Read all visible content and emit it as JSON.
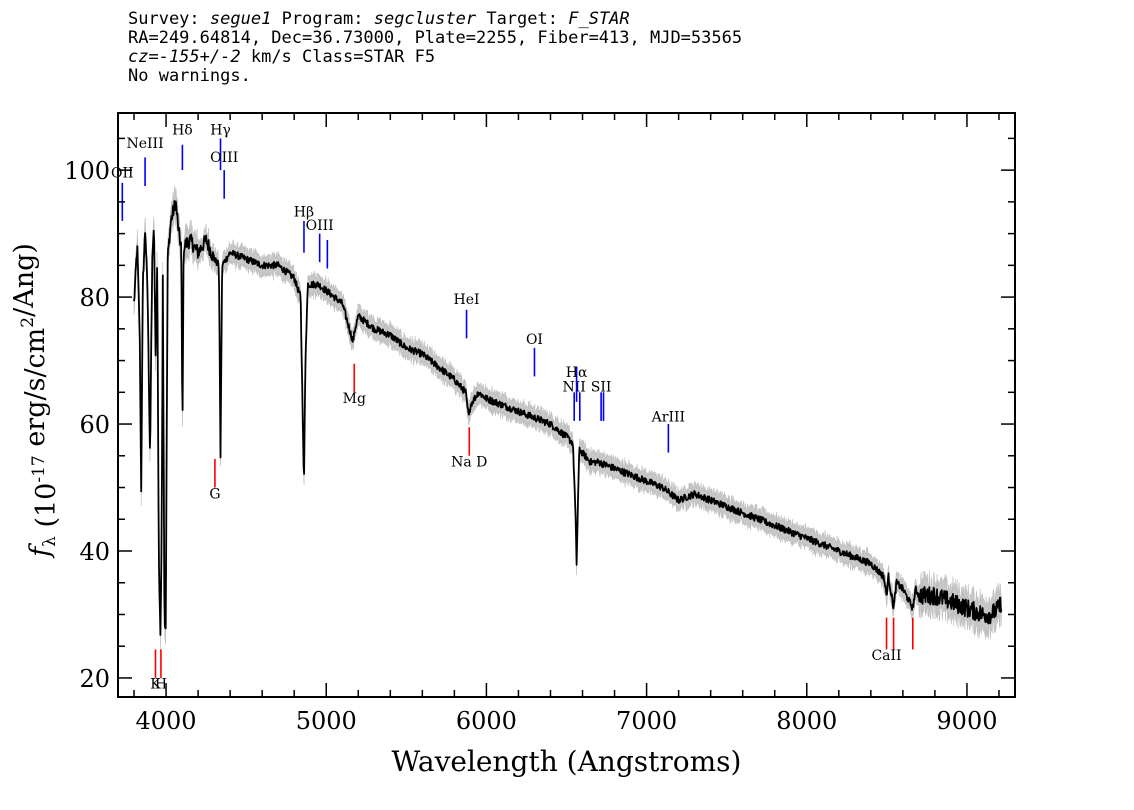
{
  "header": {
    "survey_label": "Survey:",
    "survey": "segue1",
    "program_label": "Program:",
    "program": "segcluster",
    "target_label": "Target:",
    "target": "F_STAR",
    "line2": "RA=249.64814, Dec=36.73000, Plate=2255, Fiber=413, MJD=53565",
    "cz": "cz=-155+/-2",
    "cz_suffix": "km/s Class=STAR F5",
    "line4": "No warnings."
  },
  "chart_data": {
    "type": "line",
    "xlabel": "Wavelength (Angstroms)",
    "ylabel": "f_λ (10^-17 erg/s/cm^2/Ang)",
    "xlim": [
      3700,
      9300
    ],
    "ylim": [
      17,
      109
    ],
    "x_ticks": [
      4000,
      5000,
      6000,
      7000,
      8000,
      9000
    ],
    "y_ticks": [
      20,
      40,
      60,
      80,
      100
    ],
    "series": [
      {
        "color": "#000000",
        "points": [
          [
            3800,
            79
          ],
          [
            3820,
            88
          ],
          [
            3835,
            75
          ],
          [
            3845,
            50
          ],
          [
            3855,
            82
          ],
          [
            3870,
            91
          ],
          [
            3885,
            80
          ],
          [
            3900,
            55
          ],
          [
            3915,
            88
          ],
          [
            3925,
            90
          ],
          [
            3935,
            70
          ],
          [
            3945,
            86
          ],
          [
            3955,
            38
          ],
          [
            3965,
            27
          ],
          [
            3972,
            40
          ],
          [
            3980,
            84
          ],
          [
            3990,
            29
          ],
          [
            3998,
            28
          ],
          [
            4010,
            86
          ],
          [
            4030,
            92
          ],
          [
            4060,
            95
          ],
          [
            4080,
            90
          ],
          [
            4095,
            88
          ],
          [
            4102,
            58
          ],
          [
            4110,
            88
          ],
          [
            4150,
            89
          ],
          [
            4200,
            87
          ],
          [
            4250,
            89
          ],
          [
            4300,
            86
          ],
          [
            4330,
            85
          ],
          [
            4340,
            55
          ],
          [
            4350,
            85
          ],
          [
            4400,
            87
          ],
          [
            4500,
            86
          ],
          [
            4600,
            85
          ],
          [
            4700,
            85
          ],
          [
            4800,
            83
          ],
          [
            4840,
            80
          ],
          [
            4850,
            66
          ],
          [
            4861,
            50
          ],
          [
            4870,
            70
          ],
          [
            4885,
            82
          ],
          [
            4950,
            82
          ],
          [
            5000,
            81
          ],
          [
            5100,
            79
          ],
          [
            5167,
            73
          ],
          [
            5180,
            75
          ],
          [
            5200,
            77
          ],
          [
            5300,
            75
          ],
          [
            5400,
            74
          ],
          [
            5500,
            72
          ],
          [
            5600,
            71
          ],
          [
            5700,
            69
          ],
          [
            5800,
            67
          ],
          [
            5870,
            65
          ],
          [
            5890,
            61
          ],
          [
            5900,
            63
          ],
          [
            5950,
            65
          ],
          [
            6000,
            64
          ],
          [
            6100,
            63
          ],
          [
            6200,
            62
          ],
          [
            6300,
            61
          ],
          [
            6400,
            60
          ],
          [
            6500,
            58
          ],
          [
            6540,
            57
          ],
          [
            6556,
            46
          ],
          [
            6563,
            38
          ],
          [
            6570,
            46
          ],
          [
            6580,
            56
          ],
          [
            6650,
            54
          ],
          [
            6700,
            54
          ],
          [
            6800,
            53
          ],
          [
            6900,
            52
          ],
          [
            7000,
            51
          ],
          [
            7100,
            50
          ],
          [
            7200,
            48
          ],
          [
            7300,
            49
          ],
          [
            7400,
            48
          ],
          [
            7500,
            47
          ],
          [
            7600,
            46
          ],
          [
            7700,
            45
          ],
          [
            7800,
            44
          ],
          [
            7900,
            43
          ],
          [
            8000,
            42
          ],
          [
            8100,
            41
          ],
          [
            8200,
            40
          ],
          [
            8300,
            39
          ],
          [
            8400,
            38
          ],
          [
            8480,
            36
          ],
          [
            8498,
            33
          ],
          [
            8510,
            36
          ],
          [
            8542,
            31
          ],
          [
            8560,
            35
          ],
          [
            8600,
            34
          ],
          [
            8662,
            31
          ],
          [
            8680,
            34
          ],
          [
            8700,
            33
          ],
          [
            8800,
            33
          ],
          [
            8900,
            32
          ],
          [
            9000,
            31
          ],
          [
            9100,
            30
          ],
          [
            9150,
            30
          ],
          [
            9200,
            31
          ],
          [
            9215,
            32
          ]
        ]
      }
    ],
    "line_labels": [
      {
        "name": "OII",
        "wavelength": 3727,
        "y_top": 98,
        "y_bottom": 92,
        "label_y": 98.8,
        "color": "#0000ff"
      },
      {
        "name": "NeIII",
        "wavelength": 3869,
        "y_top": 102,
        "y_bottom": 97.5,
        "label_y": 103.5,
        "color": "#0000ff"
      },
      {
        "name": "Hδ",
        "wavelength": 4102,
        "y_top": 104,
        "y_bottom": 100,
        "label_y": 105.6,
        "color": "#0000ff"
      },
      {
        "name": "Hγ",
        "wavelength": 4340,
        "y_top": 105,
        "y_bottom": 100,
        "label_y": 105.6,
        "color": "#0000ff"
      },
      {
        "name": "OIII",
        "wavelength": 4363,
        "y_top": 100,
        "y_bottom": 95.5,
        "label_y": 101.3,
        "color": "#0000ff"
      },
      {
        "name": "Hβ",
        "wavelength": 4861,
        "y_top": 92,
        "y_bottom": 87,
        "label_y": 92.7,
        "color": "#0000ff"
      },
      {
        "name": "OIII",
        "wavelength": 4959,
        "y_top": 90,
        "y_bottom": 85.5,
        "label_y": 90.6,
        "color": "#0000ff"
      },
      {
        "name": "",
        "wavelength": 5007,
        "y_top": 89,
        "y_bottom": 84.5,
        "label_y": null,
        "color": "#0000ff"
      },
      {
        "name": "HeI",
        "wavelength": 5876,
        "y_top": 78,
        "y_bottom": 73.5,
        "label_y": 78.9,
        "color": "#0000ff"
      },
      {
        "name": "OI",
        "wavelength": 6300,
        "y_top": 72,
        "y_bottom": 67.5,
        "label_y": 72.6,
        "color": "#0000ff"
      },
      {
        "name": "NII",
        "wavelength": 6548,
        "y_top": 65,
        "y_bottom": 60.5,
        "label_y": 65.1,
        "color": "#0000ff"
      },
      {
        "name": "Hα",
        "wavelength": 6563,
        "y_top": 69,
        "y_bottom": 63.5,
        "label_y": 67.4,
        "color": "#0000ff"
      },
      {
        "name": "",
        "wavelength": 6583,
        "y_top": 65,
        "y_bottom": 60.5,
        "label_y": null,
        "color": "#0000ff"
      },
      {
        "name": "SII",
        "wavelength": 6716,
        "y_top": 65,
        "y_bottom": 60.5,
        "label_y": 65.1,
        "color": "#0000ff"
      },
      {
        "name": "",
        "wavelength": 6731,
        "y_top": 65,
        "y_bottom": 60.5,
        "label_y": null,
        "color": "#0000ff"
      },
      {
        "name": "ArIII",
        "wavelength": 7136,
        "y_top": 60,
        "y_bottom": 55.5,
        "label_y": 60.4,
        "color": "#0000ff"
      },
      {
        "name": "K",
        "wavelength": 3934,
        "y_top": 24.5,
        "y_bottom": 20,
        "label_y": 18.3,
        "color": "#ff0000"
      },
      {
        "name": "H",
        "wavelength": 3968,
        "y_top": 24.5,
        "y_bottom": 20,
        "label_y": 18.3,
        "color": "#ff0000"
      },
      {
        "name": "G",
        "wavelength": 4305,
        "y_top": 54.5,
        "y_bottom": 50,
        "label_y": 48.3,
        "color": "#ff0000"
      },
      {
        "name": "Mg",
        "wavelength": 5175,
        "y_top": 69.5,
        "y_bottom": 65,
        "label_y": 63.3,
        "color": "#ff0000"
      },
      {
        "name": "Na D",
        "wavelength": 5893,
        "y_top": 59.5,
        "y_bottom": 55,
        "label_y": 53.3,
        "color": "#ff0000"
      },
      {
        "name": "CaII",
        "wavelength": 8498,
        "y_top": 29.5,
        "y_bottom": 24.5,
        "label_y": 22.8,
        "color": "#ff0000"
      },
      {
        "name": "",
        "wavelength": 8542,
        "y_top": 29.5,
        "y_bottom": 24.5,
        "label_y": null,
        "color": "#ff0000"
      },
      {
        "name": "",
        "wavelength": 8662,
        "y_top": 29.5,
        "y_bottom": 24.5,
        "label_y": null,
        "color": "#ff0000"
      }
    ]
  }
}
